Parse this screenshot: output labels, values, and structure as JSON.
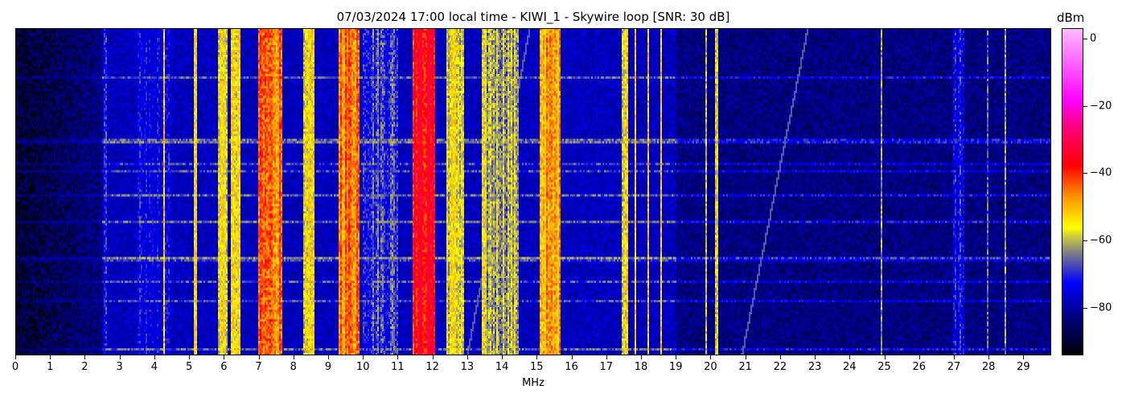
{
  "chart_data": {
    "type": "heatmap",
    "title": "07/03/2024 17:00 local time - KIWI_1 - Skywire loop [SNR: 30 dB]",
    "xlabel": "MHz",
    "ylabel": "",
    "xlim": [
      0,
      29.8
    ],
    "x_ticks": [
      "0",
      "1",
      "2",
      "3",
      "4",
      "5",
      "6",
      "7",
      "8",
      "9",
      "10",
      "11",
      "12",
      "13",
      "14",
      "15",
      "16",
      "17",
      "18",
      "19",
      "20",
      "21",
      "22",
      "23",
      "24",
      "25",
      "26",
      "27",
      "28",
      "29"
    ],
    "colorbar": {
      "label": "dBm",
      "range": [
        -94,
        3
      ],
      "ticks": [
        "0",
        "−20",
        "−40",
        "−60",
        "−80"
      ],
      "tick_values": [
        0,
        -20,
        -40,
        -60,
        -80
      ],
      "colormap": [
        "#000008",
        "#000070",
        "#0000ff",
        "#7a7a8a",
        "#ffff00",
        "#ff9900",
        "#ff0000",
        "#ff0080",
        "#ff00ff",
        "#ffbbff"
      ]
    },
    "background_levels_dbm": [
      {
        "from_mhz": 0,
        "to_mhz": 2.5,
        "level": -92
      },
      {
        "from_mhz": 2.5,
        "to_mhz": 19,
        "level": -80
      },
      {
        "from_mhz": 19,
        "to_mhz": 29.8,
        "level": -86
      }
    ],
    "signal_bands_dbm": [
      {
        "from_mhz": 2.55,
        "to_mhz": 2.65,
        "level": -72
      },
      {
        "from_mhz": 3.5,
        "to_mhz": 4.5,
        "level": -78
      },
      {
        "from_mhz": 4.25,
        "to_mhz": 4.32,
        "level": -50
      },
      {
        "from_mhz": 5.15,
        "to_mhz": 5.25,
        "level": -58
      },
      {
        "from_mhz": 5.85,
        "to_mhz": 6.1,
        "level": -57
      },
      {
        "from_mhz": 6.2,
        "to_mhz": 6.5,
        "level": -55
      },
      {
        "from_mhz": 7.0,
        "to_mhz": 7.7,
        "level": -45
      },
      {
        "from_mhz": 8.3,
        "to_mhz": 8.6,
        "level": -57
      },
      {
        "from_mhz": 9.3,
        "to_mhz": 9.9,
        "level": -45
      },
      {
        "from_mhz": 10.0,
        "to_mhz": 11.0,
        "level": -70
      },
      {
        "from_mhz": 11.45,
        "to_mhz": 12.1,
        "level": -36
      },
      {
        "from_mhz": 12.4,
        "to_mhz": 12.9,
        "level": -58
      },
      {
        "from_mhz": 13.4,
        "to_mhz": 14.5,
        "level": -62
      },
      {
        "from_mhz": 15.1,
        "to_mhz": 15.7,
        "level": -50
      },
      {
        "from_mhz": 17.45,
        "to_mhz": 17.65,
        "level": -56
      },
      {
        "from_mhz": 17.8,
        "to_mhz": 17.85,
        "level": -57
      },
      {
        "from_mhz": 18.2,
        "to_mhz": 18.25,
        "level": -48
      },
      {
        "from_mhz": 18.55,
        "to_mhz": 18.62,
        "level": -57
      },
      {
        "from_mhz": 19.85,
        "to_mhz": 19.9,
        "level": -57
      },
      {
        "from_mhz": 20.15,
        "to_mhz": 20.2,
        "level": -57
      },
      {
        "from_mhz": 24.88,
        "to_mhz": 24.92,
        "level": -68
      },
      {
        "from_mhz": 27.0,
        "to_mhz": 27.3,
        "level": -76
      },
      {
        "from_mhz": 27.95,
        "to_mhz": 28.0,
        "level": -64
      },
      {
        "from_mhz": 28.45,
        "to_mhz": 28.5,
        "level": -60
      }
    ]
  }
}
